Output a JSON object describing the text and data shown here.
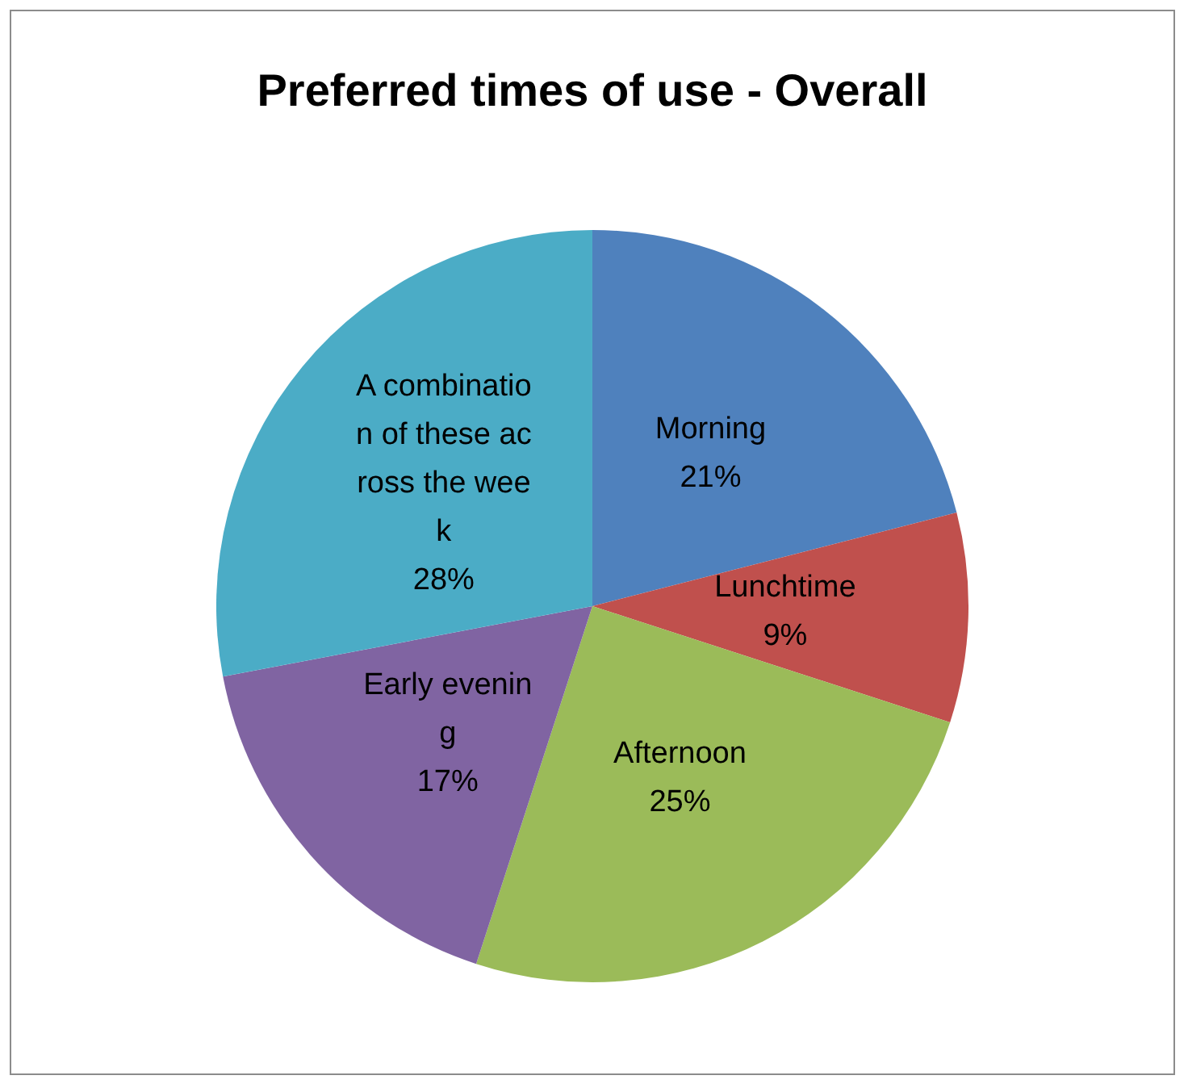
{
  "chart_data": {
    "type": "pie",
    "title": "Preferred times of use - Overall",
    "categories": [
      "Morning",
      "Lunchtime",
      "Afternoon",
      "Early evening",
      "A combination of these across the week"
    ],
    "values": [
      21,
      9,
      25,
      17,
      28
    ],
    "value_labels": [
      "21%",
      "9%",
      "25%",
      "17%",
      "28%"
    ],
    "colors": [
      "#4f81bd",
      "#c0504d",
      "#9bbb59",
      "#8064a2",
      "#4bacc6"
    ]
  }
}
